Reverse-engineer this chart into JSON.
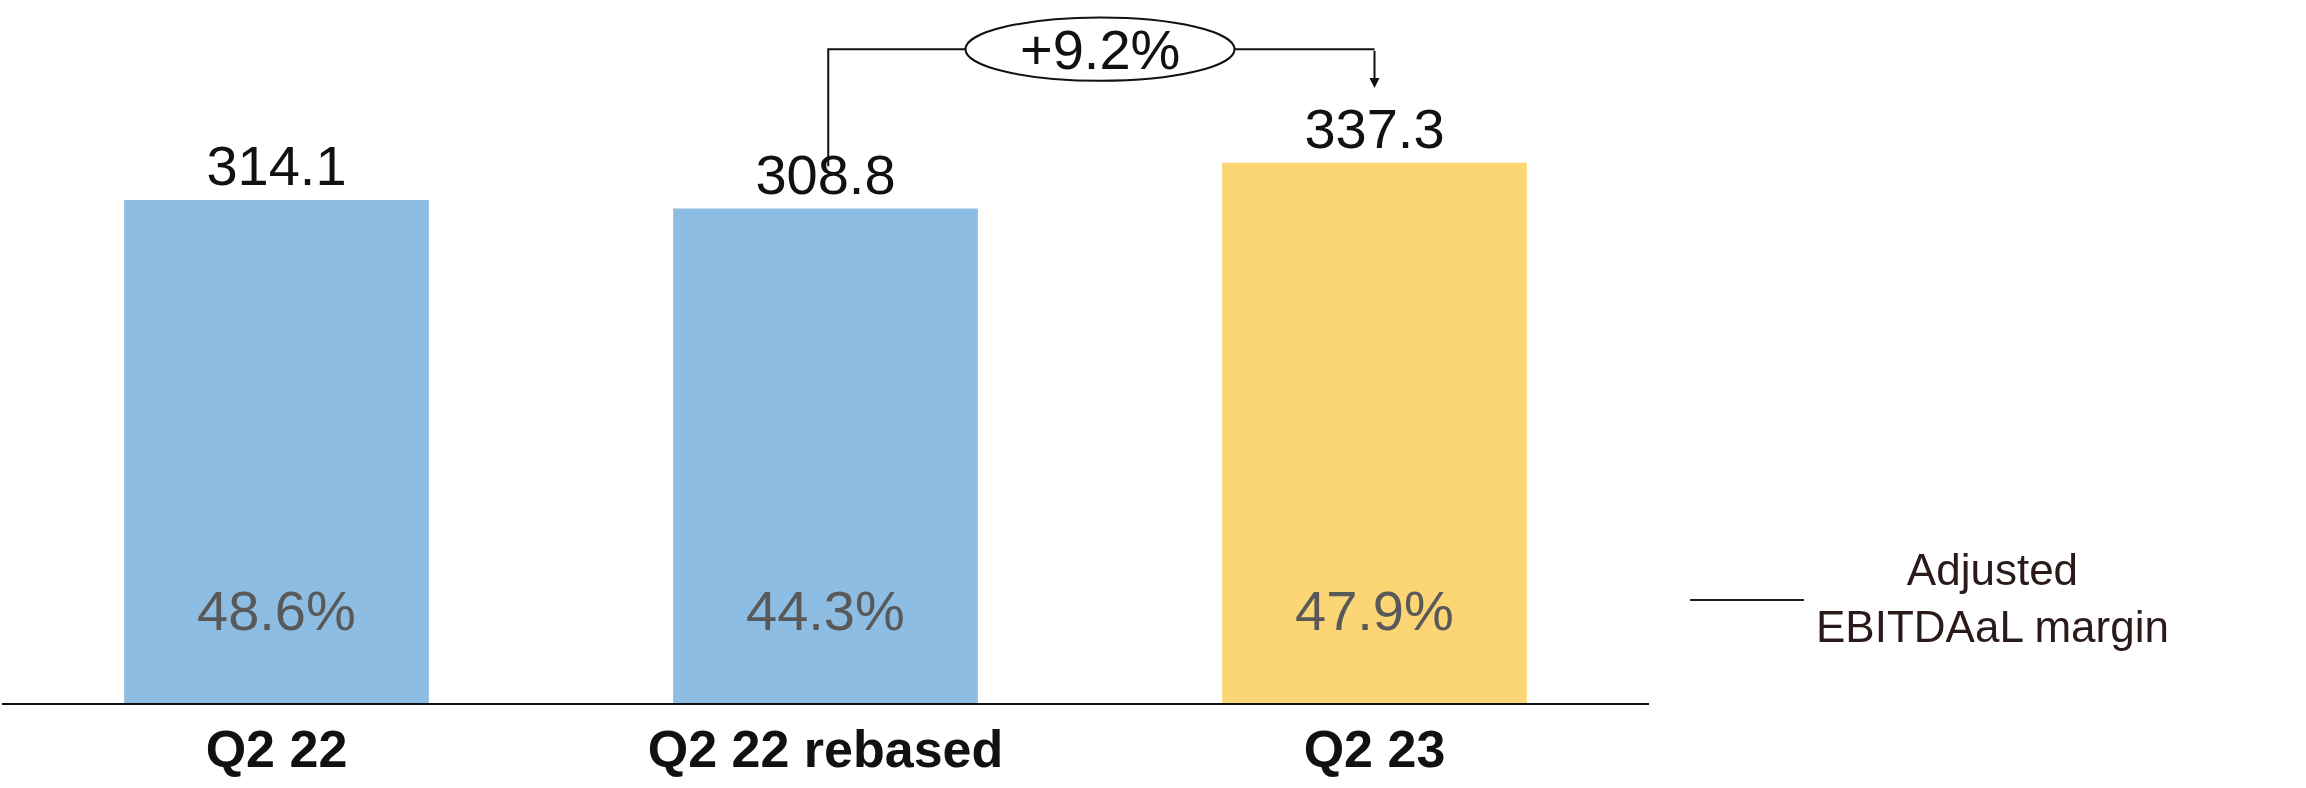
{
  "chart_data": {
    "type": "bar",
    "categories": [
      "Q2 22",
      "Q2 22 rebased",
      "Q2 23"
    ],
    "values": [
      314.1,
      308.8,
      337.3
    ],
    "colors": [
      "#8dbde2",
      "#8dbde2",
      "#fcd675"
    ],
    "ylim": [
      0,
      439
    ],
    "tick_labels": "x",
    "data_labels": true,
    "grid": false,
    "legend": false,
    "annotations": [
      "+9.2%",
      "48.6%",
      "44.3%",
      "47.9%",
      "Adjusted EBITDAaL margin"
    ]
  }
}
